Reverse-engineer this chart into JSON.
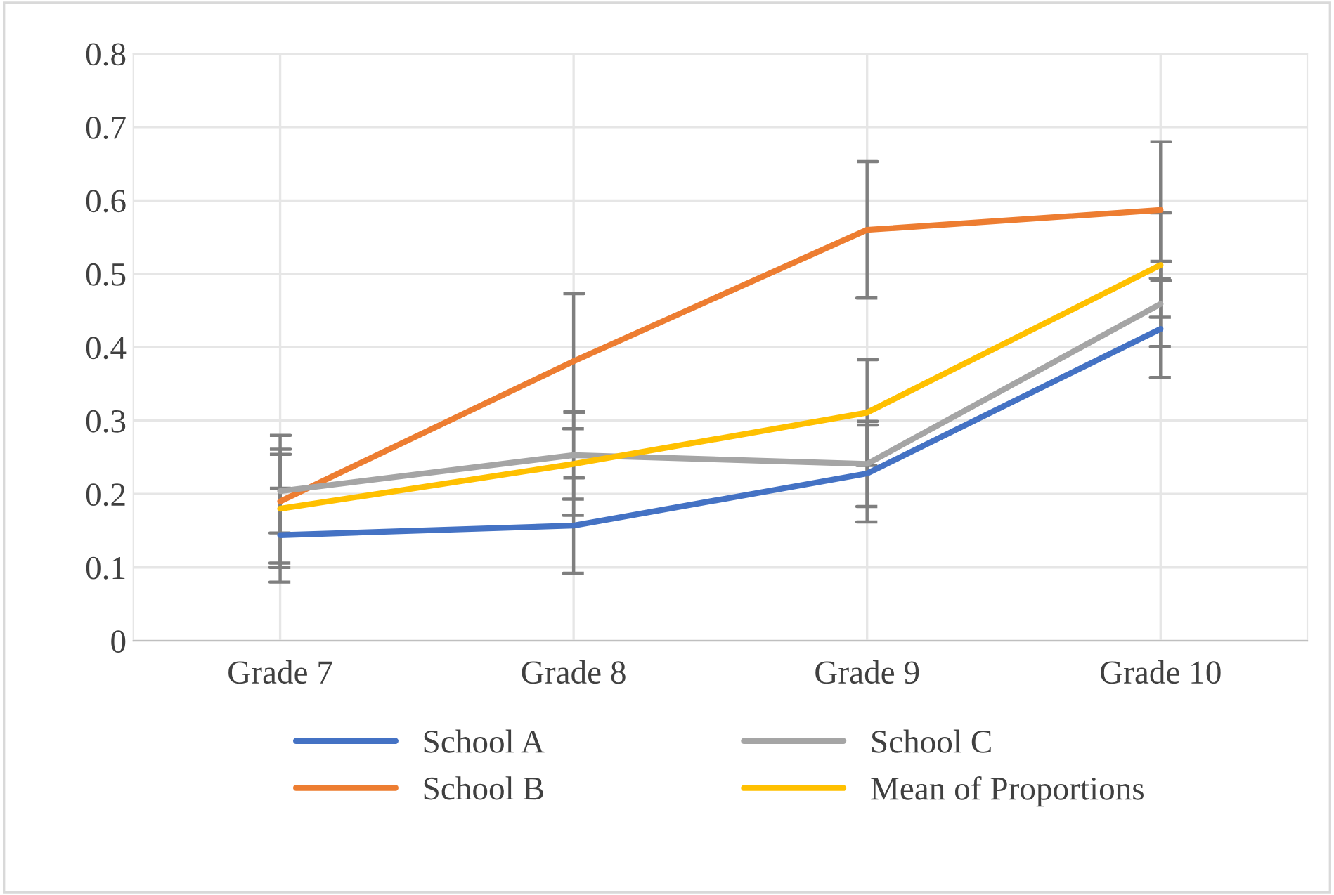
{
  "chart_data": {
    "type": "line",
    "categories": [
      "Grade 7",
      "Grade 8",
      "Grade 9",
      "Grade 10"
    ],
    "series": [
      {
        "name": "School A",
        "color": "#4472c4",
        "values": [
          0.144,
          0.157,
          0.228,
          0.425
        ],
        "errors": [
          0.064,
          0.065,
          0.066,
          0.066
        ]
      },
      {
        "name": "School B",
        "color": "#ed7d31",
        "values": [
          0.19,
          0.381,
          0.56,
          0.587
        ],
        "errors": [
          0.09,
          0.092,
          0.093,
          0.093
        ]
      },
      {
        "name": "School C",
        "color": "#a5a5a5",
        "values": [
          0.204,
          0.253,
          0.241,
          0.459
        ],
        "errors": [
          0.057,
          0.06,
          0.058,
          0.058
        ]
      },
      {
        "name": "Mean of Proportions",
        "color": "#ffc000",
        "values": [
          0.18,
          0.241,
          0.311,
          0.512
        ],
        "errors": [
          0.074,
          0.07,
          0.072,
          0.071
        ]
      }
    ],
    "ylim": [
      0,
      0.8
    ],
    "yticks": [
      {
        "value": 0,
        "label": "0"
      },
      0.1,
      0.2,
      0.3,
      0.4,
      0.5,
      0.6,
      0.7,
      0.8
    ],
    "grid": true,
    "legend": "bottom",
    "marker": "none",
    "line_style": "solid"
  }
}
